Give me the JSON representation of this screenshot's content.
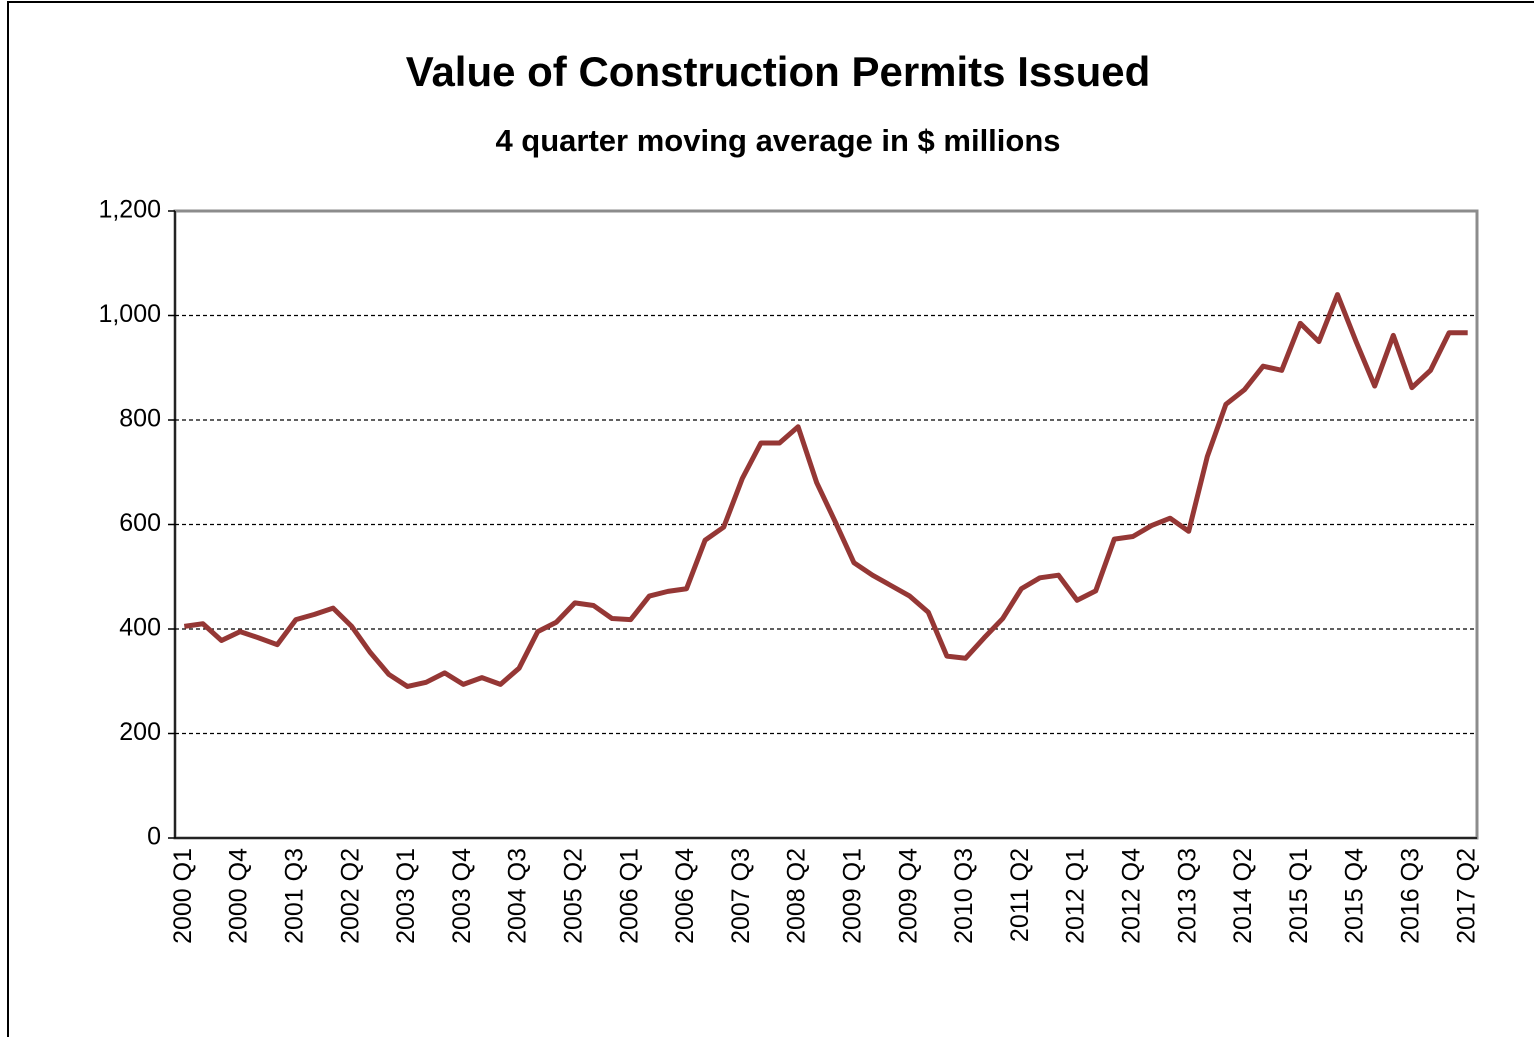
{
  "chart_data": {
    "type": "line",
    "title": "Value of Construction Permits Issued",
    "subtitle": "4 quarter moving average in $ millions",
    "categories": [
      "2000 Q1",
      null,
      null,
      "2000 Q4",
      null,
      null,
      "2001 Q3",
      null,
      null,
      "2002 Q2",
      null,
      null,
      "2003 Q1",
      null,
      null,
      "2003 Q4",
      null,
      null,
      "2004 Q3",
      null,
      null,
      "2005 Q2",
      null,
      null,
      "2006 Q1",
      null,
      null,
      "2006 Q4",
      null,
      null,
      "2007 Q3",
      null,
      null,
      "2008 Q2",
      null,
      null,
      "2009 Q1",
      null,
      null,
      "2009 Q4",
      null,
      null,
      "2010 Q3",
      null,
      null,
      "2011 Q2",
      null,
      null,
      "2012 Q1",
      null,
      null,
      "2012 Q4",
      null,
      null,
      "2013 Q3",
      null,
      null,
      "2014 Q2",
      null,
      null,
      "2015 Q1",
      null,
      null,
      "2015 Q4",
      null,
      null,
      "2016 Q3",
      null,
      null,
      "2017 Q2"
    ],
    "series": [
      {
        "color": "#953735",
        "values": [
          405,
          410,
          378,
          395,
          383,
          370,
          418,
          428,
          440,
          405,
          355,
          313,
          290,
          298,
          316,
          294,
          307,
          294,
          325,
          395,
          413,
          450,
          445,
          420,
          418,
          463,
          472,
          477,
          570,
          595,
          688,
          756,
          756,
          787,
          680,
          605,
          527,
          503,
          483,
          463,
          432,
          348,
          344,
          383,
          420,
          477,
          498,
          503,
          455,
          473,
          572,
          577,
          598,
          612,
          587,
          730,
          830,
          858,
          903,
          895,
          985,
          950,
          1040,
          950,
          865,
          962,
          862,
          895,
          967,
          967
        ]
      }
    ],
    "ylim": [
      0,
      1200
    ],
    "yticks": [
      0,
      200,
      400,
      600,
      800,
      {
        "value": 1000,
        "label": "1,000"
      },
      {
        "value": 1200,
        "label": "1,200"
      }
    ],
    "grid": true
  }
}
